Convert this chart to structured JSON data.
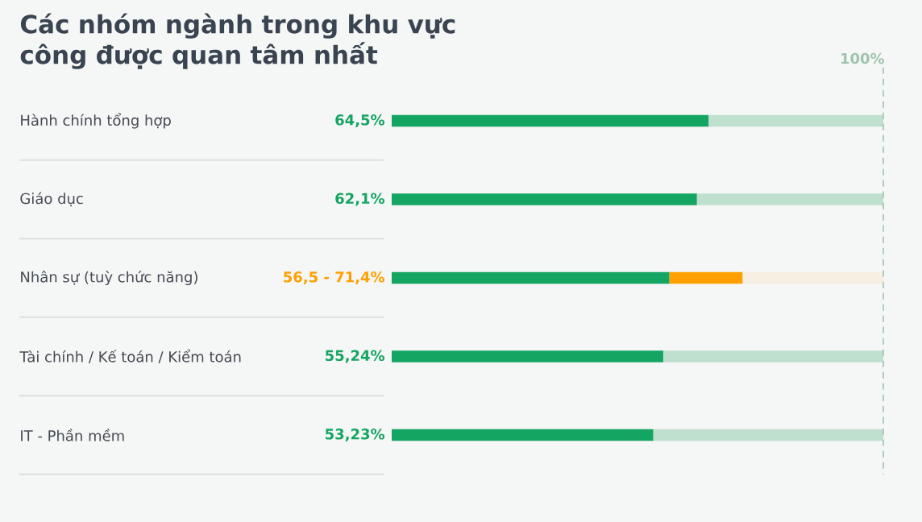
{
  "chart_data": {
    "type": "bar",
    "orientation": "horizontal",
    "stacked": true,
    "title": "Các nhóm ngành trong khu vực công được quan tâm nhất",
    "categories": [
      "Hành chính tổng hợp",
      "Giáo dục",
      "Nhân sự (tuỳ chức năng)",
      "Tài chính / Kế toán / Kiểm toán",
      "IT - Phần mềm"
    ],
    "series": [
      {
        "color": "#15a562",
        "values": [
          64.5,
          62.1,
          56.5,
          55.24,
          53.23
        ],
        "value_labels": [
          "64,5%",
          "62,1%",
          null,
          "55,24%",
          "53,23%"
        ]
      },
      {
        "color": "#ffa000",
        "values": [
          null,
          null,
          14.9,
          null,
          null
        ]
      },
      {
        "colors": [
          "#c0e0cf",
          "#c0e0cf",
          "#f7efe1",
          "#c0e0cf",
          "#c0e0cf"
        ],
        "values": [
          35.5,
          37.9,
          28.6,
          44.76,
          46.77
        ]
      }
    ],
    "annotations": [
      "56,5 - 71,4%"
    ],
    "xlim": [
      0,
      100
    ],
    "tick_labels": false,
    "ref_lines": [
      {
        "axis": "x",
        "value": 100,
        "label": "100%",
        "color": "#9fc4ae",
        "line_style": "dashed"
      }
    ]
  }
}
